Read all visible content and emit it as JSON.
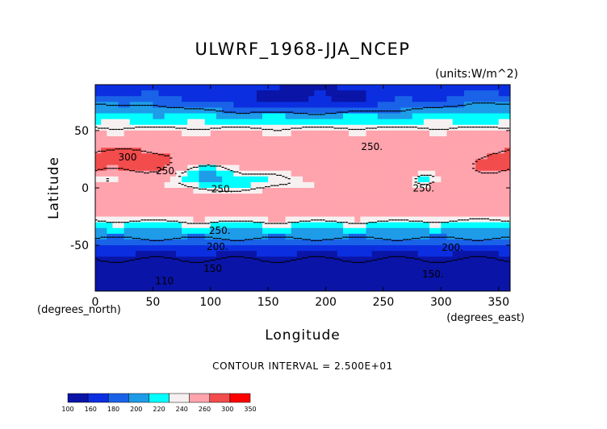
{
  "chart_data": {
    "type": "heatmap",
    "title": "ULWRF_1968-JJA_NCEP",
    "units_label": "(units:W/m^2)",
    "xlabel": "Longitude",
    "ylabel": "Latitude",
    "x_unit_label": "(degrees_east)",
    "y_unit_label": "(degrees_north)",
    "xlim": [
      0,
      360
    ],
    "ylim": [
      -90,
      90
    ],
    "x_ticks": [
      "0",
      "50",
      "100",
      "150",
      "200",
      "250",
      "300",
      "350"
    ],
    "y_ticks": [
      "50",
      "0",
      "-50"
    ],
    "contour_interval_text": "CONTOUR INTERVAL = 2.500E+01",
    "contour_labels": [
      "300",
      "250.",
      "250.",
      "250.",
      "250.",
      "250.",
      "200.",
      "200.",
      "150.",
      "150",
      "110"
    ],
    "colorbar": {
      "levels": [
        "100",
        "160",
        "180",
        "200",
        "220",
        "240",
        "260",
        "300",
        "350"
      ],
      "colors": [
        "#0a14a6",
        "#0b2fe0",
        "#1a63e8",
        "#1e9ce8",
        "#00ffff",
        "#f7f0f0",
        "#ffa3ad",
        "#f24c4c",
        "#ff0000"
      ]
    },
    "grid": false,
    "legend": "bottom-left colorbar"
  }
}
